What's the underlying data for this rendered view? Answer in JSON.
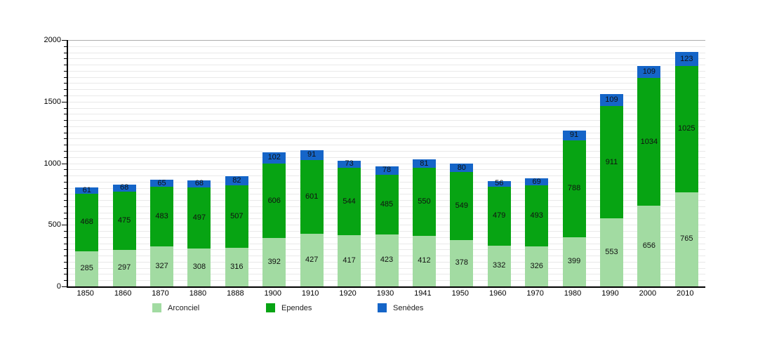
{
  "chart_data": {
    "type": "bar",
    "stacked": true,
    "title": "",
    "xlabel": "",
    "ylabel": "",
    "categories": [
      "1850",
      "1860",
      "1870",
      "1880",
      "1888",
      "1900",
      "1910",
      "1920",
      "1930",
      "1941",
      "1950",
      "1960",
      "1970",
      "1980",
      "1990",
      "2000",
      "2010"
    ],
    "series": [
      {
        "name": "Arconciel",
        "color": "#A2DBA2",
        "values": [
          285,
          297,
          327,
          308,
          316,
          392,
          427,
          417,
          423,
          412,
          378,
          332,
          326,
          399,
          553,
          656,
          765
        ]
      },
      {
        "name": "Ependes",
        "color": "#07A413",
        "values": [
          468,
          475,
          483,
          497,
          507,
          606,
          601,
          544,
          485,
          550,
          549,
          479,
          493,
          788,
          911,
          1034,
          1025
        ]
      },
      {
        "name": "Senèdes",
        "color": "#1565C8",
        "values": [
          61,
          68,
          65,
          68,
          82,
          102,
          91,
          73,
          78,
          81,
          80,
          56,
          69,
          91,
          109,
          109,
          123
        ]
      }
    ],
    "ylim": [
      0,
      2000
    ],
    "yticks": [
      0,
      500,
      1000,
      1500,
      2000
    ],
    "grid": {
      "minor_step": 50,
      "major_step": 500,
      "show": true
    },
    "legend_position": "bottom",
    "bar_value_labels": true
  }
}
